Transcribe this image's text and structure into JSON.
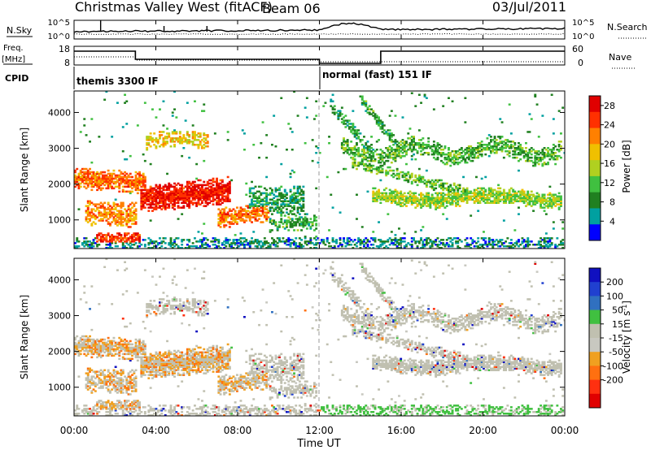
{
  "header": {
    "station": "Christmas Valley West (fitACF)",
    "beam": "Beam 06",
    "date": "03/Jul/2011"
  },
  "noise_panel": {
    "left_label": "N.Sky",
    "left_ticks": [
      "10^5",
      "10^0"
    ],
    "right_label": "N.Search",
    "right_ticks": [
      "10^5",
      "10^0"
    ]
  },
  "freq_panel": {
    "left_label_1": "Freq.",
    "left_label_2": "[MHz]",
    "left_ticks": [
      "18",
      "8"
    ],
    "right_label": "Nave",
    "right_ticks": [
      "60",
      "0"
    ]
  },
  "cpid": {
    "label": "CPID",
    "modes": [
      "themis 3300 IF",
      "normal (fast) 151 IF"
    ]
  },
  "colors": {
    "power": [
      "#0000ff",
      "#00a0a0",
      "#208020",
      "#40c040",
      "#b0d020",
      "#f0c000",
      "#ff8000",
      "#ff3000",
      "#e00000"
    ],
    "velocity": [
      "#1010c0",
      "#2040d0",
      "#3070c0",
      "#40c040",
      "#c0c0b0",
      "#c8c8c0",
      "#f0a020",
      "#ff7010",
      "#ff3010",
      "#e00000"
    ]
  },
  "chart_data": [
    {
      "type": "heatmap",
      "title": "",
      "xlabel": "",
      "ylabel": "Slant Range [km]",
      "xlim": [
        "00:00",
        "24:00"
      ],
      "ylim": [
        200,
        4600
      ],
      "x_ticks": [
        "00:00",
        "04:00",
        "08:00",
        "12:00",
        "16:00",
        "20:00",
        "00:00"
      ],
      "y_ticks": [
        "1000",
        "2000",
        "3000",
        "4000"
      ],
      "colorbar": {
        "label": "Power [dB]",
        "ticks": [
          "4",
          "8",
          "12",
          "16",
          "20",
          "24",
          "28"
        ],
        "range": [
          0,
          30
        ]
      }
    },
    {
      "type": "heatmap",
      "title": "",
      "xlabel": "Time UT",
      "ylabel": "Slant Range [km]",
      "xlim": [
        "00:00",
        "24:00"
      ],
      "ylim": [
        200,
        4600
      ],
      "x_ticks": [
        "00:00",
        "04:00",
        "08:00",
        "12:00",
        "16:00",
        "20:00",
        "00:00"
      ],
      "y_ticks": [
        "1000",
        "2000",
        "3000",
        "4000"
      ],
      "colorbar": {
        "label": "Velocity [m s^-1]",
        "ticks": [
          "200",
          "100",
          "50",
          "15",
          "-15",
          "-50",
          "-100",
          "-200"
        ],
        "range": [
          -250,
          250
        ]
      }
    }
  ]
}
